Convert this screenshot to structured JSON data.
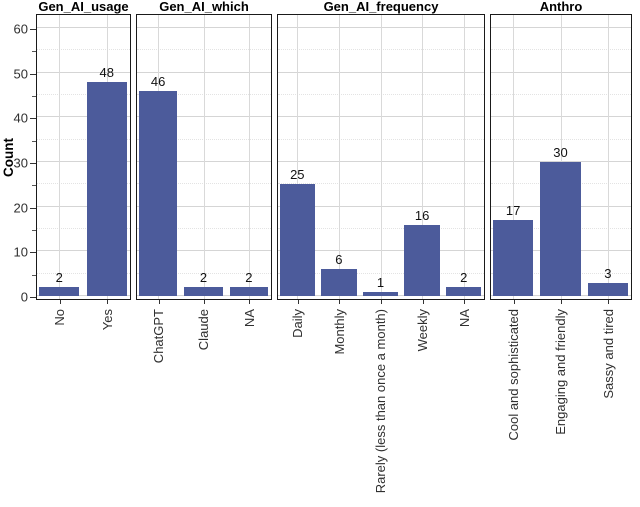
{
  "chart_data": {
    "type": "bar",
    "title": "",
    "ylabel": "Count",
    "xlabel": "",
    "ylim": [
      0,
      62
    ],
    "yticks": [
      0,
      10,
      20,
      30,
      40,
      50,
      60
    ],
    "yticks_minor": [
      5,
      15,
      25,
      35,
      45,
      55
    ],
    "grid": "major solid + minor dotted, vertical gridline at each category center",
    "legend": "none",
    "bar_color": "#4C5B9B",
    "panel_border_color": "#1a1a1a",
    "facets": [
      {
        "name": "Gen_AI_usage",
        "categories": [
          "No",
          "Yes"
        ],
        "values": [
          2,
          48
        ]
      },
      {
        "name": "Gen_AI_which",
        "categories": [
          "ChatGPT",
          "Claude",
          "NA"
        ],
        "values": [
          46,
          2,
          2
        ]
      },
      {
        "name": "Gen_AI_frequency",
        "categories": [
          "Daily",
          "Monthly",
          "Rarely (less than once a month)",
          "Weekly",
          "NA"
        ],
        "values": [
          25,
          6,
          1,
          16,
          2
        ]
      },
      {
        "name": "Anthro",
        "categories": [
          "Cool and sophisticated",
          "Engaging and friendly",
          "Sassy and tired"
        ],
        "values": [
          17,
          30,
          3
        ]
      }
    ]
  }
}
